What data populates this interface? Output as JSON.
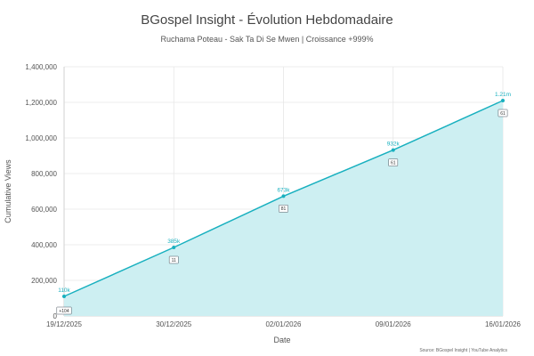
{
  "chart_data": {
    "type": "area",
    "title": "BGospel Insight - Évolution Hebdomadaire",
    "subtitle": "Ruchama Poteau - Sak Ta Di Se Mwen | Croissance +999%",
    "xlabel": "Date",
    "ylabel": "Cumulative Views",
    "ylim": [
      0,
      1400000
    ],
    "y_ticks": [
      "0",
      "200,000",
      "400,000",
      "600,000",
      "800,000",
      "1,000,000",
      "1,200,000",
      "1,400,000"
    ],
    "categories": [
      "19/12/2025",
      "30/12/2025",
      "02/01/2026",
      "09/01/2026",
      "16/01/2026"
    ],
    "series": [
      {
        "values": [
          110000,
          385000,
          673000,
          932000,
          1210000
        ],
        "point_labels": [
          "110k",
          "385k",
          "673k",
          "932k",
          "1.21m"
        ]
      }
    ],
    "gain_labels": [
      "+104",
      "11",
      "81",
      "61",
      "61"
    ],
    "grid": true,
    "source": "Source: BGospel Insight | YouTube Analytics",
    "colors": {
      "line": "#18b0bf",
      "fill": "#cdeff2",
      "text": "#444444"
    }
  }
}
